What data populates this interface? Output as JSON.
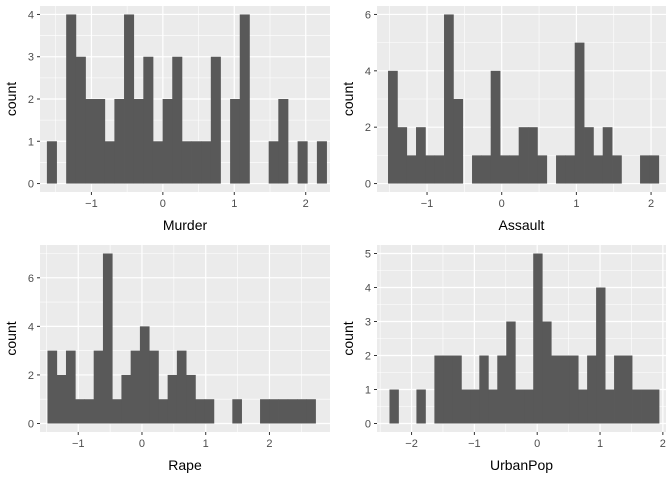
{
  "chart_data": [
    {
      "type": "bar",
      "title": "",
      "xlabel": "Murder",
      "ylabel": "count",
      "xlim": [
        -1.72,
        2.34
      ],
      "ylim": [
        -0.2,
        4.2
      ],
      "xticks": [
        -1,
        0,
        1,
        2
      ],
      "yticks": [
        0,
        1,
        2,
        3,
        4
      ],
      "grid": true,
      "bin_width": 0.135,
      "bins": [
        {
          "x": -1.556,
          "count": 1
        },
        {
          "x": -1.421,
          "count": 0
        },
        {
          "x": -1.286,
          "count": 4
        },
        {
          "x": -1.151,
          "count": 3
        },
        {
          "x": -1.016,
          "count": 2
        },
        {
          "x": -0.881,
          "count": 2
        },
        {
          "x": -0.746,
          "count": 1
        },
        {
          "x": -0.611,
          "count": 2
        },
        {
          "x": -0.476,
          "count": 4
        },
        {
          "x": -0.341,
          "count": 2
        },
        {
          "x": -0.206,
          "count": 3
        },
        {
          "x": -0.071,
          "count": 1
        },
        {
          "x": 0.064,
          "count": 2
        },
        {
          "x": 0.199,
          "count": 3
        },
        {
          "x": 0.334,
          "count": 1
        },
        {
          "x": 0.469,
          "count": 1
        },
        {
          "x": 0.604,
          "count": 1
        },
        {
          "x": 0.739,
          "count": 3
        },
        {
          "x": 0.874,
          "count": 0
        },
        {
          "x": 1.009,
          "count": 2
        },
        {
          "x": 1.144,
          "count": 4
        },
        {
          "x": 1.279,
          "count": 0
        },
        {
          "x": 1.414,
          "count": 0
        },
        {
          "x": 1.549,
          "count": 1
        },
        {
          "x": 1.684,
          "count": 2
        },
        {
          "x": 1.819,
          "count": 0
        },
        {
          "x": 1.954,
          "count": 1
        },
        {
          "x": 2.089,
          "count": 0
        },
        {
          "x": 2.224,
          "count": 1
        }
      ]
    },
    {
      "type": "bar",
      "title": "",
      "xlabel": "Assault",
      "ylabel": "count",
      "xlim": [
        -1.67,
        2.2
      ],
      "ylim": [
        -0.3,
        6.3
      ],
      "xticks": [
        -1,
        0,
        1,
        2
      ],
      "yticks": [
        0,
        2,
        4,
        6
      ],
      "grid": true,
      "bin_width": 0.125,
      "bins": [
        {
          "x": -1.46,
          "count": 4
        },
        {
          "x": -1.335,
          "count": 2
        },
        {
          "x": -1.21,
          "count": 1
        },
        {
          "x": -1.085,
          "count": 2
        },
        {
          "x": -0.96,
          "count": 1
        },
        {
          "x": -0.835,
          "count": 1
        },
        {
          "x": -0.71,
          "count": 6
        },
        {
          "x": -0.585,
          "count": 3
        },
        {
          "x": -0.46,
          "count": 0
        },
        {
          "x": -0.335,
          "count": 1
        },
        {
          "x": -0.21,
          "count": 1
        },
        {
          "x": -0.085,
          "count": 4
        },
        {
          "x": 0.04,
          "count": 1
        },
        {
          "x": 0.165,
          "count": 1
        },
        {
          "x": 0.29,
          "count": 2
        },
        {
          "x": 0.415,
          "count": 2
        },
        {
          "x": 0.54,
          "count": 1
        },
        {
          "x": 0.665,
          "count": 0
        },
        {
          "x": 0.79,
          "count": 1
        },
        {
          "x": 0.915,
          "count": 1
        },
        {
          "x": 1.04,
          "count": 5
        },
        {
          "x": 1.165,
          "count": 2
        },
        {
          "x": 1.29,
          "count": 1
        },
        {
          "x": 1.415,
          "count": 2
        },
        {
          "x": 1.54,
          "count": 1
        },
        {
          "x": 1.665,
          "count": 0
        },
        {
          "x": 1.79,
          "count": 0
        },
        {
          "x": 1.915,
          "count": 1
        },
        {
          "x": 2.04,
          "count": 1
        }
      ]
    },
    {
      "type": "bar",
      "title": "",
      "xlabel": "Rape",
      "ylabel": "count",
      "xlim": [
        -1.6,
        2.95
      ],
      "ylim": [
        -0.35,
        7.35
      ],
      "xticks": [
        -1,
        0,
        1,
        2
      ],
      "yticks": [
        0,
        2,
        4,
        6
      ],
      "grid": true,
      "bin_width": 0.145,
      "bins": [
        {
          "x": -1.41,
          "count": 3
        },
        {
          "x": -1.265,
          "count": 2
        },
        {
          "x": -1.12,
          "count": 3
        },
        {
          "x": -0.975,
          "count": 1
        },
        {
          "x": -0.83,
          "count": 1
        },
        {
          "x": -0.685,
          "count": 3
        },
        {
          "x": -0.54,
          "count": 7
        },
        {
          "x": -0.395,
          "count": 1
        },
        {
          "x": -0.25,
          "count": 2
        },
        {
          "x": -0.105,
          "count": 3
        },
        {
          "x": 0.04,
          "count": 4
        },
        {
          "x": 0.185,
          "count": 3
        },
        {
          "x": 0.33,
          "count": 1
        },
        {
          "x": 0.475,
          "count": 2
        },
        {
          "x": 0.62,
          "count": 3
        },
        {
          "x": 0.765,
          "count": 2
        },
        {
          "x": 0.91,
          "count": 1
        },
        {
          "x": 1.055,
          "count": 1
        },
        {
          "x": 1.2,
          "count": 0
        },
        {
          "x": 1.345,
          "count": 0
        },
        {
          "x": 1.49,
          "count": 1
        },
        {
          "x": 1.635,
          "count": 0
        },
        {
          "x": 1.78,
          "count": 0
        },
        {
          "x": 1.925,
          "count": 1
        },
        {
          "x": 2.07,
          "count": 1
        },
        {
          "x": 2.215,
          "count": 1
        },
        {
          "x": 2.36,
          "count": 1
        },
        {
          "x": 2.505,
          "count": 1
        },
        {
          "x": 2.65,
          "count": 1
        }
      ]
    },
    {
      "type": "bar",
      "title": "",
      "xlabel": "UrbanPop",
      "ylabel": "count",
      "xlim": [
        -2.55,
        2.05
      ],
      "ylim": [
        -0.25,
        5.25
      ],
      "xticks": [
        -2,
        -1,
        0,
        1,
        2
      ],
      "yticks": [
        0,
        1,
        2,
        3,
        4,
        5
      ],
      "grid": true,
      "bin_width": 0.143,
      "bins": [
        {
          "x": -2.28,
          "count": 1
        },
        {
          "x": -2.137,
          "count": 0
        },
        {
          "x": -1.994,
          "count": 0
        },
        {
          "x": -1.851,
          "count": 1
        },
        {
          "x": -1.708,
          "count": 0
        },
        {
          "x": -1.565,
          "count": 2
        },
        {
          "x": -1.422,
          "count": 2
        },
        {
          "x": -1.279,
          "count": 2
        },
        {
          "x": -1.136,
          "count": 1
        },
        {
          "x": -0.993,
          "count": 1
        },
        {
          "x": -0.85,
          "count": 2
        },
        {
          "x": -0.707,
          "count": 1
        },
        {
          "x": -0.564,
          "count": 2
        },
        {
          "x": -0.421,
          "count": 3
        },
        {
          "x": -0.278,
          "count": 1
        },
        {
          "x": -0.135,
          "count": 1
        },
        {
          "x": 0.008,
          "count": 5
        },
        {
          "x": 0.151,
          "count": 3
        },
        {
          "x": 0.294,
          "count": 2
        },
        {
          "x": 0.437,
          "count": 2
        },
        {
          "x": 0.58,
          "count": 2
        },
        {
          "x": 0.723,
          "count": 1
        },
        {
          "x": 0.866,
          "count": 2
        },
        {
          "x": 1.009,
          "count": 4
        },
        {
          "x": 1.152,
          "count": 1
        },
        {
          "x": 1.295,
          "count": 2
        },
        {
          "x": 1.438,
          "count": 2
        },
        {
          "x": 1.581,
          "count": 1
        },
        {
          "x": 1.724,
          "count": 1
        },
        {
          "x": 1.867,
          "count": 1
        }
      ]
    }
  ],
  "style": {
    "panel_background": "#ebebeb",
    "grid_major": "#ffffff",
    "bar_fill": "#595959",
    "tick_text": "#4d4d4d",
    "tick_mark": "#333333",
    "title_text": "#000000"
  }
}
